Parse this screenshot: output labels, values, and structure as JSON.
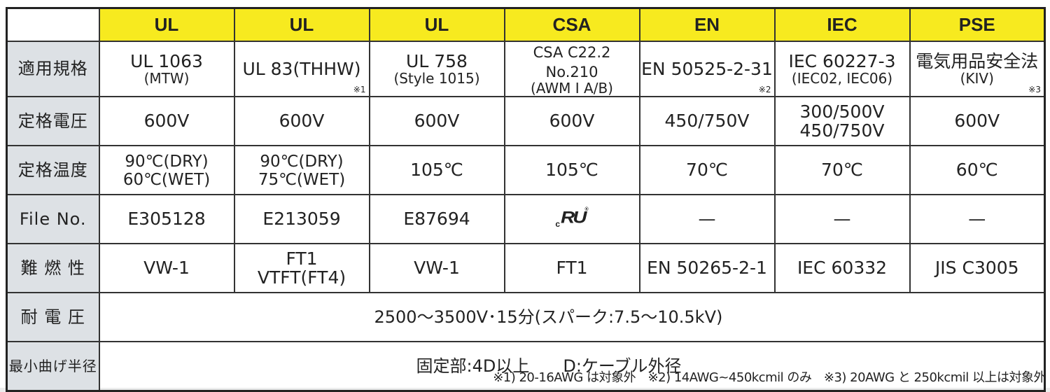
{
  "headers": [
    "UL",
    "UL",
    "UL",
    "CSA",
    "EN",
    "IEC",
    "PSE"
  ],
  "rows": [
    {
      "label": "適用規格",
      "cells": [
        {
          "main": "UL 1063",
          "sub": "(MTW)",
          "note": ""
        },
        {
          "main": "UL 83(THHW)",
          "sub": "",
          "note": "※1"
        },
        {
          "main": "UL 758",
          "sub": "(Style 1015)",
          "note": ""
        },
        {
          "main": "CSA C22.2 No.210",
          "sub": "(AWM I A/B)",
          "note": ""
        },
        {
          "main": "EN 50525-2-31",
          "sub": "",
          "note": "※2"
        },
        {
          "main": "IEC 60227-3",
          "sub": "(IEC02, IEC06)",
          "note": ""
        },
        {
          "main": "電気用品安全法",
          "sub": "(KIV)",
          "note": "※3"
        }
      ]
    },
    {
      "label": "定格電圧",
      "cells": [
        {
          "main": "600V",
          "sub": ""
        },
        {
          "main": "600V",
          "sub": ""
        },
        {
          "main": "600V",
          "sub": ""
        },
        {
          "main": "600V",
          "sub": ""
        },
        {
          "main": "450/750V",
          "sub": ""
        },
        {
          "main": "300/500V",
          "sub": "450/750V"
        },
        {
          "main": "600V",
          "sub": ""
        }
      ]
    },
    {
      "label": "定格温度",
      "cells": [
        {
          "main": "90℃(DRY)",
          "sub": "60℃(WET)"
        },
        {
          "main": "90℃(DRY)",
          "sub": "75℃(WET)"
        },
        {
          "main": "105℃",
          "sub": ""
        },
        {
          "main": "105℃",
          "sub": ""
        },
        {
          "main": "70℃",
          "sub": ""
        },
        {
          "main": "70℃",
          "sub": ""
        },
        {
          "main": "60℃",
          "sub": ""
        }
      ]
    },
    {
      "label": "File No.",
      "cells": [
        {
          "main": "E305128"
        },
        {
          "main": "E213059"
        },
        {
          "main": "E87694"
        },
        {
          "main": "",
          "logo": "cRU"
        },
        {
          "main": "—"
        },
        {
          "main": "—"
        },
        {
          "main": "—"
        }
      ]
    },
    {
      "label": "難 燃 性",
      "cells": [
        {
          "main": "VW-1",
          "sub": ""
        },
        {
          "main": "FT1",
          "sub": "VTFT(FT4)"
        },
        {
          "main": "VW-1",
          "sub": ""
        },
        {
          "main": "FT1",
          "sub": ""
        },
        {
          "main": "EN 50265-2-1",
          "sub": ""
        },
        {
          "main": "IEC 60332",
          "sub": ""
        },
        {
          "main": "JIS C3005",
          "sub": ""
        }
      ]
    }
  ],
  "withstand": {
    "label": "耐 電 圧",
    "value": "2500～3500V･15分(スパーク:7.5～10.5kV)"
  },
  "bend": {
    "label": "最小曲げ半径",
    "value": "固定部:4D以上　　D:ケーブル外径"
  },
  "footnote": "※1) 20-16AWG は対象外　※2) 14AWG~450kcmil のみ　※3) 20AWG と 250kcmil 以上は対象外"
}
